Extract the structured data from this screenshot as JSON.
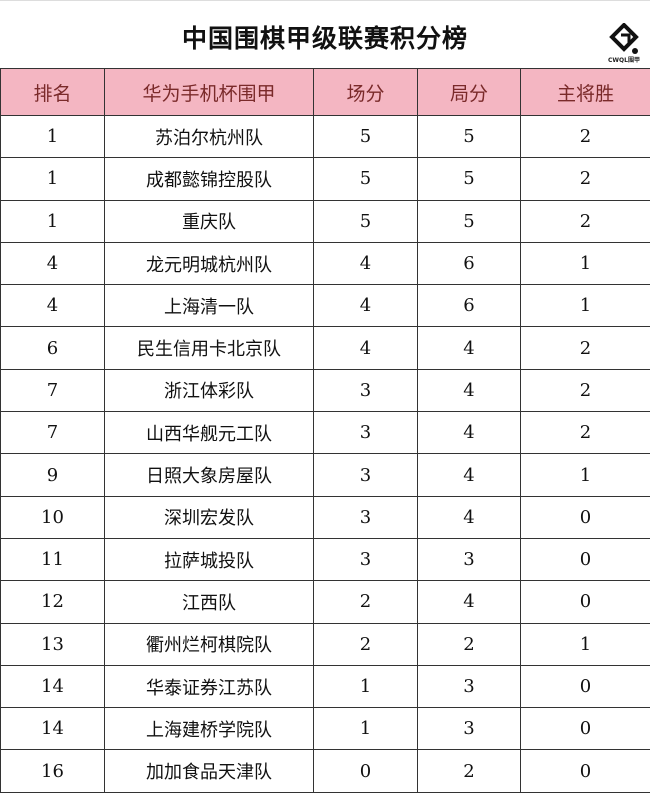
{
  "title": "中国围棋甲级联赛积分榜",
  "logo_text": "CWQL围甲",
  "colors": {
    "header_bg": "#f4b6c2",
    "header_text": "#7a2a2a"
  },
  "headers": [
    "排名",
    "华为手机杯围甲",
    "场分",
    "局分",
    "主将胜"
  ],
  "rows": [
    [
      "1",
      "苏泊尔杭州队",
      "5",
      "5",
      "2"
    ],
    [
      "1",
      "成都懿锦控股队",
      "5",
      "5",
      "2"
    ],
    [
      "1",
      "重庆队",
      "5",
      "5",
      "2"
    ],
    [
      "4",
      "龙元明城杭州队",
      "4",
      "6",
      "1"
    ],
    [
      "4",
      "上海清一队",
      "4",
      "6",
      "1"
    ],
    [
      "6",
      "民生信用卡北京队",
      "4",
      "4",
      "2"
    ],
    [
      "7",
      "浙江体彩队",
      "3",
      "4",
      "2"
    ],
    [
      "7",
      "山西华舰元工队",
      "3",
      "4",
      "2"
    ],
    [
      "9",
      "日照大象房屋队",
      "3",
      "4",
      "1"
    ],
    [
      "10",
      "深圳宏发队",
      "3",
      "4",
      "0"
    ],
    [
      "11",
      "拉萨城投队",
      "3",
      "3",
      "0"
    ],
    [
      "12",
      "江西队",
      "2",
      "4",
      "0"
    ],
    [
      "13",
      "衢州烂柯棋院队",
      "2",
      "2",
      "1"
    ],
    [
      "14",
      "华泰证券江苏队",
      "1",
      "3",
      "0"
    ],
    [
      "14",
      "上海建桥学院队",
      "1",
      "3",
      "0"
    ],
    [
      "16",
      "加加食品天津队",
      "0",
      "2",
      "0"
    ]
  ]
}
